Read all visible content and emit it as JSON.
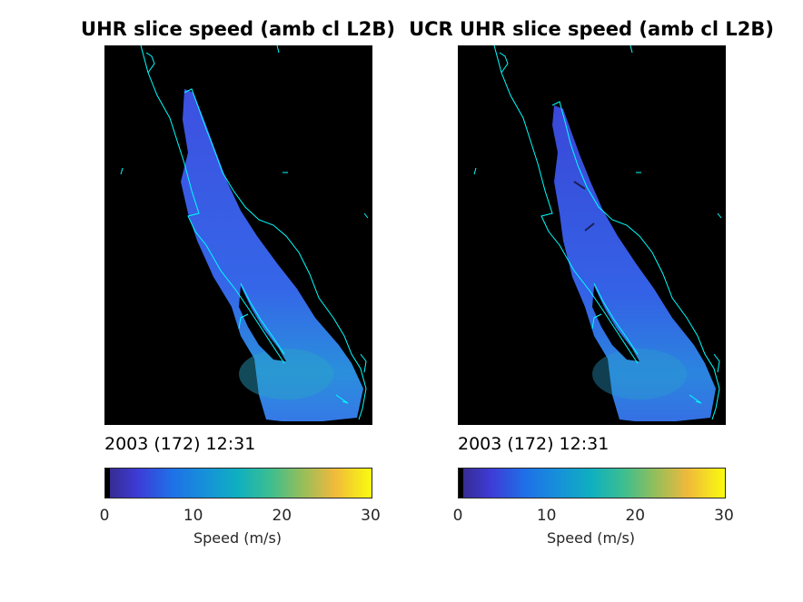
{
  "chart_data": [
    {
      "type": "heatmap",
      "title": "UHR slice speed (amb cl L2B)",
      "timestamp": "2003 (172) 12:31",
      "colorbar": {
        "label": "Speed (m/s)",
        "range": [
          0,
          30
        ],
        "ticks": [
          0,
          10,
          20,
          30
        ],
        "tick_labels": [
          "0",
          "10",
          "20",
          "30"
        ],
        "colormap": "parula"
      },
      "background_color": "#000000",
      "coastline_color": "#00ffff",
      "typical_speed_range_ms": [
        3,
        10
      ]
    },
    {
      "type": "heatmap",
      "title": "UCR UHR slice speed (amb cl L2B)",
      "timestamp": "2003 (172) 12:31",
      "colorbar": {
        "label": "Speed (m/s)",
        "range": [
          0,
          30
        ],
        "ticks": [
          0,
          10,
          20,
          30
        ],
        "tick_labels": [
          "0",
          "10",
          "20",
          "30"
        ],
        "colormap": "parula"
      },
      "background_color": "#000000",
      "coastline_color": "#00ffff",
      "typical_speed_range_ms": [
        3,
        9
      ]
    }
  ]
}
